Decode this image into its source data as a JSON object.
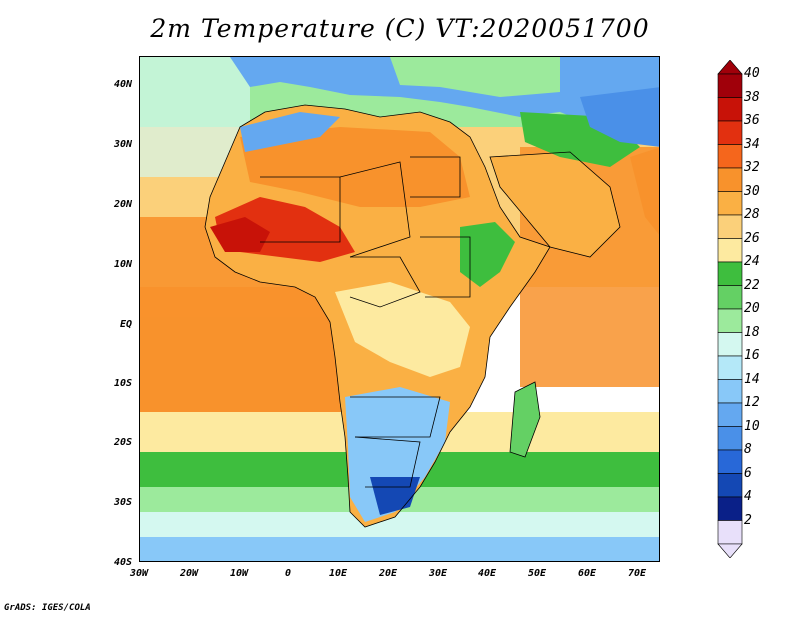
{
  "title": "2m Temperature (C) VT:2020051700",
  "credit": "GrADS: IGES/COLA",
  "chart_data": {
    "type": "heatmap",
    "title": "2m Temperature (C) VT:2020051700",
    "variable": "2m Temperature",
    "units": "C",
    "valid_time": "2020051700",
    "region": "Africa",
    "lon_range": [
      -30,
      75
    ],
    "lat_range": [
      -40,
      45
    ],
    "lon_ticks": [
      "30W",
      "20W",
      "10W",
      "0",
      "10E",
      "20E",
      "30E",
      "40E",
      "50E",
      "60E",
      "70E"
    ],
    "lat_ticks": [
      "40N",
      "30N",
      "20N",
      "10N",
      "EQ",
      "10S",
      "20S",
      "30S",
      "40S"
    ],
    "colorbar_levels": [
      "40",
      "38",
      "36",
      "34",
      "32",
      "30",
      "28",
      "26",
      "24",
      "22",
      "20",
      "18",
      "16",
      "14",
      "12",
      "10",
      "8",
      "6",
      "4",
      "2"
    ],
    "colorbar_colors": [
      "#a0000a",
      "#c81208",
      "#e23010",
      "#f5661c",
      "#f8922c",
      "#fab044",
      "#fbd07a",
      "#fdeaa0",
      "#3ebe3e",
      "#64d064",
      "#9cea9c",
      "#d4f8f0",
      "#b4e8f8",
      "#88c8f8",
      "#64a8f0",
      "#4a90e8",
      "#2868d8",
      "#1448b4",
      "#0a2088",
      "#e8e0fa"
    ]
  }
}
